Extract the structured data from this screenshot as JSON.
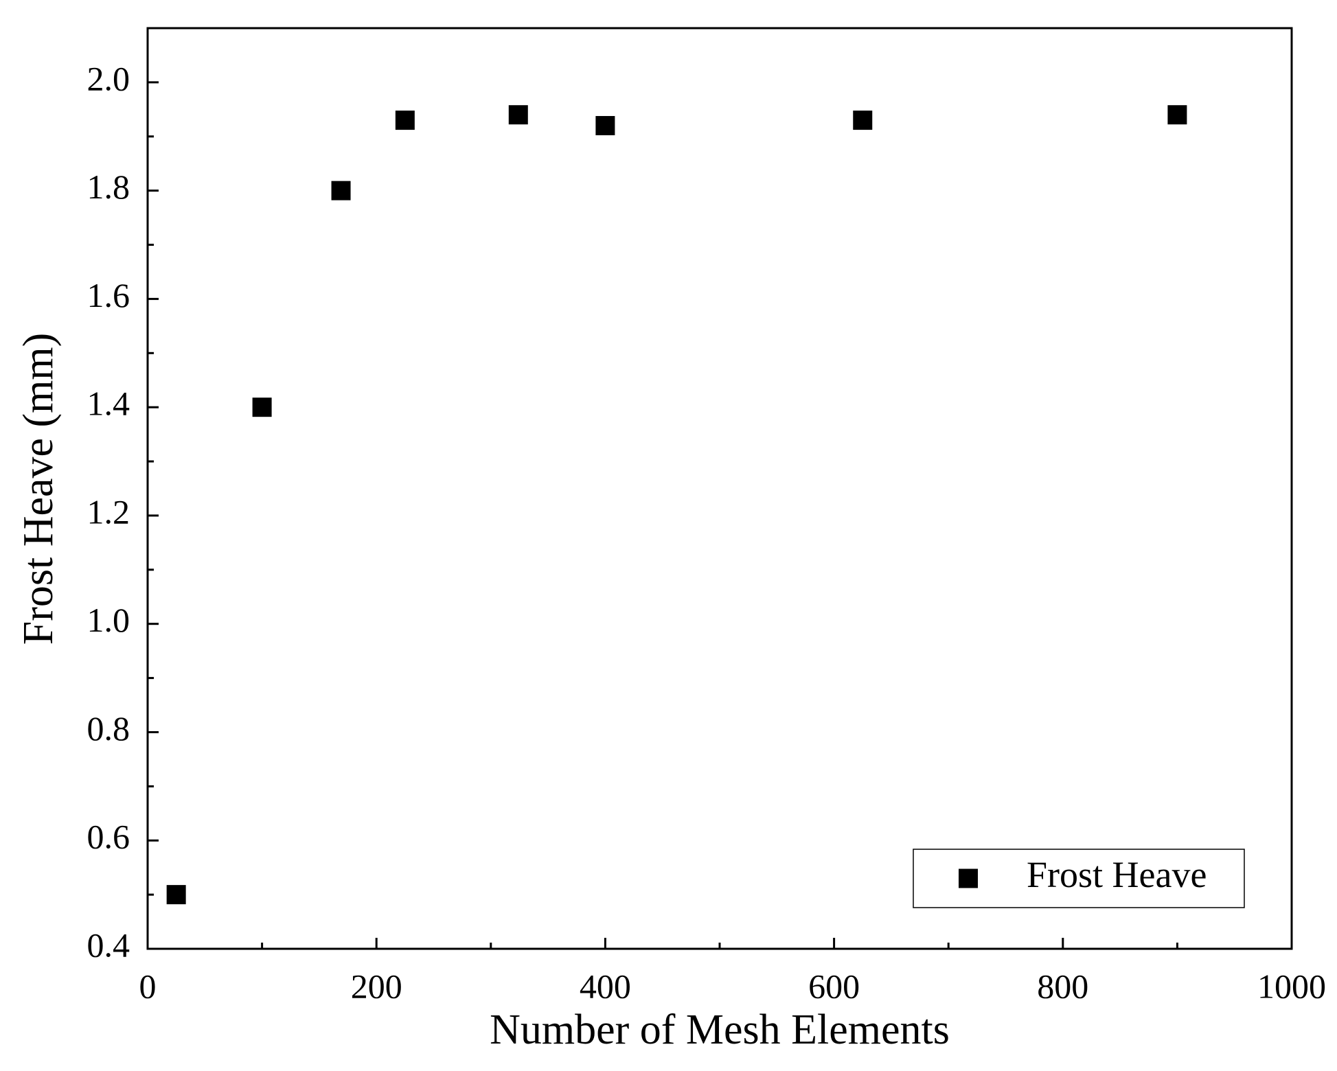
{
  "chart_data": {
    "type": "scatter",
    "x_label": "Number of Mesh Elements",
    "y_label": "Frost Heave (mm)",
    "series": [
      {
        "name": "Frost Heave",
        "color": "#000000",
        "x": [
          25,
          100,
          169,
          225,
          324,
          400,
          625,
          900
        ],
        "values": [
          0.5,
          1.4,
          1.8,
          1.93,
          1.94,
          1.92,
          1.93,
          1.94
        ]
      }
    ],
    "xlim": [
      0,
      1000
    ],
    "xticks": [
      0,
      200,
      400,
      600,
      800,
      1000
    ],
    "xminorticks": [
      100,
      300,
      500,
      700,
      900
    ],
    "ylim": [
      0.4,
      2.1
    ],
    "yticks": [
      0.4,
      0.6,
      0.8,
      {
        "value": 1,
        "label": "1.0"
      },
      1.2,
      1.4,
      1.6,
      1.8,
      {
        "value": 2,
        "label": "2.0"
      }
    ],
    "yminorticks": [
      0.5,
      0.7,
      0.9,
      1.1,
      1.3,
      1.5,
      1.7,
      1.9
    ],
    "legend": "lower right",
    "grid": false
  }
}
